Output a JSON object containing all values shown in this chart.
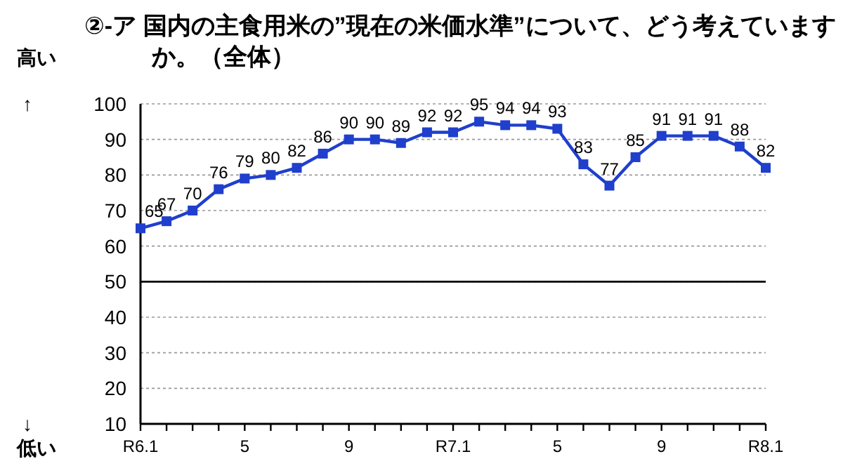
{
  "chart_data": {
    "type": "line",
    "title": "②-ア 国内の主食用米の”現在の米価水準”について、どう考えていますか。（全体）",
    "categories": [
      "R6.1",
      null,
      null,
      null,
      "5",
      null,
      null,
      null,
      "9",
      null,
      null,
      null,
      "R7.1",
      null,
      null,
      null,
      "5",
      null,
      null,
      null,
      "9",
      null,
      null,
      null,
      "R8.1"
    ],
    "series": [
      {
        "color": "#1f3fcc",
        "values": [
          65,
          67,
          70,
          76,
          79,
          80,
          82,
          86,
          90,
          90,
          89,
          92,
          92,
          95,
          94,
          94,
          93,
          83,
          77,
          85,
          91,
          91,
          91,
          88,
          82
        ]
      }
    ],
    "ylim": [
      10,
      100
    ],
    "yticks": [
      10,
      20,
      30,
      40,
      50,
      60,
      70,
      80,
      90,
      100
    ],
    "grid": "y",
    "marker": "square",
    "line_style": "solid",
    "data_labels": true,
    "ref_lines": [
      {
        "axis": "y",
        "value": 50,
        "color": "#000000"
      }
    ],
    "annotations": [
      "高い",
      "↑",
      "↓",
      "低い"
    ]
  }
}
